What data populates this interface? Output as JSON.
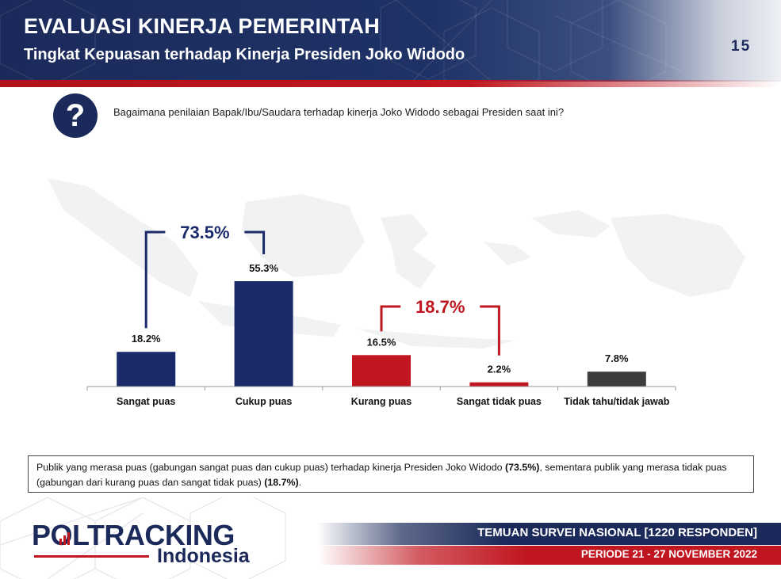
{
  "header": {
    "title": "EVALUASI KINERJA PEMERINTAH",
    "subtitle": "Tingkat Kepuasan terhadap Kinerja Presiden Joko Widodo",
    "page_number": "15"
  },
  "question": {
    "icon": "question-mark-icon",
    "text": "Bagaimana penilaian Bapak/Ibu/Saudara terhadap kinerja Joko Widodo sebagai Presiden saat ini?"
  },
  "chart_data": {
    "type": "bar",
    "categories": [
      "Sangat puas",
      "Cukup puas",
      "Kurang puas",
      "Sangat tidak puas",
      "Tidak tahu/tidak jawab"
    ],
    "values": [
      18.2,
      55.3,
      16.5,
      2.2,
      7.8
    ],
    "value_labels": [
      "18.2%",
      "55.3%",
      "16.5%",
      "2.2%",
      "7.8%"
    ],
    "bar_colors": [
      "#1b2a6b",
      "#1b2a6b",
      "#c0161f",
      "#c0161f",
      "#3d3d3d"
    ],
    "ylim": [
      0,
      100
    ],
    "grid": false,
    "groups": [
      {
        "label": "73.5%",
        "value": 73.5,
        "categories": [
          "Sangat puas",
          "Cukup puas"
        ],
        "color": "#1b2a6b"
      },
      {
        "label": "18.7%",
        "value": 18.7,
        "categories": [
          "Kurang puas",
          "Sangat tidak puas"
        ],
        "color": "#c0161f"
      }
    ]
  },
  "note": {
    "part1": "Publik yang merasa puas (gabungan sangat puas dan cukup puas) terhadap kinerja Presiden Joko Widodo ",
    "bold1": "(73.5%)",
    "part2": ", sementara publik yang merasa tidak puas (gabungan dari kurang puas dan sangat tidak puas) ",
    "bold2": "(18.7%)",
    "part3": "."
  },
  "footer": {
    "logo_main": "POLTRACKING",
    "logo_sub": "Indonesia",
    "survey": "TEMUAN SURVEI NASIONAL [1220 RESPONDEN]",
    "period": "PERIODE 21 - 27 NOVEMBER 2022"
  },
  "colors": {
    "navy": "#1b2a5a",
    "red": "#c0161f",
    "gray": "#3d3d3d"
  }
}
